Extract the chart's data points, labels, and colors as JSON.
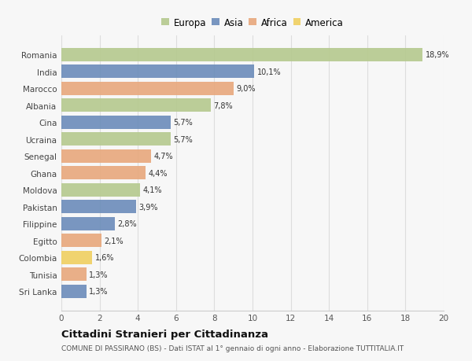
{
  "countries": [
    "Romania",
    "India",
    "Marocco",
    "Albania",
    "Cina",
    "Ucraina",
    "Senegal",
    "Ghana",
    "Moldova",
    "Pakistan",
    "Filippine",
    "Egitto",
    "Colombia",
    "Tunisia",
    "Sri Lanka"
  ],
  "values": [
    18.9,
    10.1,
    9.0,
    7.8,
    5.7,
    5.7,
    4.7,
    4.4,
    4.1,
    3.9,
    2.8,
    2.1,
    1.6,
    1.3,
    1.3
  ],
  "labels": [
    "18,9%",
    "10,1%",
    "9,0%",
    "7,8%",
    "5,7%",
    "5,7%",
    "4,7%",
    "4,4%",
    "4,1%",
    "3,9%",
    "2,8%",
    "2,1%",
    "1,6%",
    "1,3%",
    "1,3%"
  ],
  "continents": [
    "Europa",
    "Asia",
    "Africa",
    "Europa",
    "Asia",
    "Europa",
    "Africa",
    "Africa",
    "Europa",
    "Asia",
    "Asia",
    "Africa",
    "America",
    "Africa",
    "Asia"
  ],
  "colors": {
    "Europa": "#b5c98e",
    "Asia": "#6b8cba",
    "Africa": "#e8a87c",
    "America": "#f0d060"
  },
  "title": "Cittadini Stranieri per Cittadinanza",
  "subtitle": "COMUNE DI PASSIRANO (BS) - Dati ISTAT al 1° gennaio di ogni anno - Elaborazione TUTTITALIA.IT",
  "xlim": [
    0,
    20
  ],
  "xticks": [
    0,
    2,
    4,
    6,
    8,
    10,
    12,
    14,
    16,
    18,
    20
  ],
  "background_color": "#f7f7f7",
  "grid_color": "#dddddd"
}
